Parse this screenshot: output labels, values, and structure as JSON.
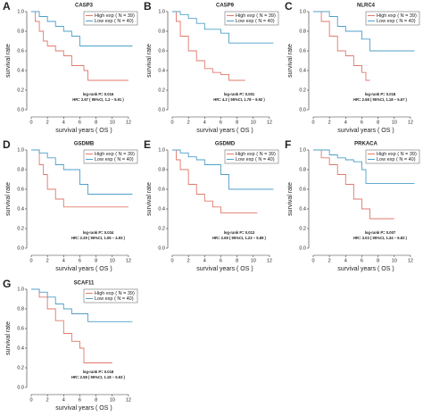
{
  "chart_data": [
    {
      "type": "line",
      "step": true,
      "label": "A",
      "title": "CASP3",
      "ylabel": "survival rate",
      "xlabel": "survival years ( OS )",
      "xlim": [
        0,
        13
      ],
      "xticks": [
        0,
        2,
        4,
        6,
        8,
        10,
        12
      ],
      "ylim": [
        0,
        1
      ],
      "yticks": [
        {
          "value": 0,
          "label": "0.0"
        },
        0.2,
        0.4,
        0.6,
        0.8,
        {
          "value": 1,
          "label": "1.0"
        }
      ],
      "legend": "upper right",
      "annotations": [
        "log-rank P= 0.016",
        "HR= 2.67 ( 95%CI, 1.2 – 5.91 )"
      ],
      "series": [
        {
          "name": "High exp ( N = 39)",
          "color": "#e07a6b",
          "x": [
            0,
            0.5,
            1,
            1.5,
            2,
            3,
            4,
            5,
            6.5,
            7,
            12
          ],
          "values": [
            1,
            0.9,
            0.8,
            0.7,
            0.65,
            0.6,
            0.55,
            0.45,
            0.4,
            0.3,
            0.3
          ]
        },
        {
          "name": "Low exp ( N = 40)",
          "color": "#4f9fca",
          "x": [
            0,
            1,
            2,
            3,
            4,
            5,
            6,
            12.5
          ],
          "values": [
            1,
            0.95,
            0.9,
            0.85,
            0.8,
            0.75,
            0.65,
            0.65
          ]
        }
      ]
    },
    {
      "type": "line",
      "step": true,
      "label": "B",
      "title": "CASP9",
      "ylabel": "survival rate",
      "xlabel": "survival years ( OS )",
      "xlim": [
        0,
        13
      ],
      "xticks": [
        0,
        2,
        4,
        6,
        8,
        10,
        12
      ],
      "ylim": [
        0,
        1
      ],
      "yticks": [
        {
          "value": 0,
          "label": "0.0"
        },
        0.2,
        0.4,
        0.6,
        0.8,
        {
          "value": 1,
          "label": "1.0"
        }
      ],
      "legend": "upper right",
      "annotations": [
        "log-rank P= 0.001",
        "HR= 4.2 ( 95%CI, 1.78 – 9.92 )"
      ],
      "series": [
        {
          "name": "High exp ( N = 39)",
          "color": "#e07a6b",
          "x": [
            0,
            0.5,
            1,
            2,
            3,
            4,
            5,
            6,
            7,
            9
          ],
          "values": [
            1,
            0.9,
            0.75,
            0.6,
            0.5,
            0.42,
            0.38,
            0.36,
            0.3,
            0.3
          ]
        },
        {
          "name": "Low exp ( N = 40)",
          "color": "#4f9fca",
          "x": [
            0,
            1,
            2,
            3,
            4,
            6,
            7,
            12.5
          ],
          "values": [
            1,
            0.97,
            0.93,
            0.88,
            0.82,
            0.78,
            0.68,
            0.68
          ]
        }
      ]
    },
    {
      "type": "line",
      "step": true,
      "label": "C",
      "title": "NLRC4",
      "ylabel": "survival rate",
      "xlabel": "survival years ( OS )",
      "xlim": [
        0,
        13
      ],
      "xticks": [
        0,
        2,
        4,
        6,
        8,
        10,
        12
      ],
      "ylim": [
        0,
        1
      ],
      "yticks": [
        {
          "value": 0,
          "label": "0.0"
        },
        0.2,
        0.4,
        0.6,
        0.8,
        {
          "value": 1,
          "label": "1.0"
        }
      ],
      "legend": "upper right",
      "annotations": [
        "log-rank P= 0.018",
        "HR= 2.58 ( 95%CI, 1.18 – 5.67 )"
      ],
      "series": [
        {
          "name": "High exp ( N = 39)",
          "color": "#e07a6b",
          "x": [
            0,
            1,
            2,
            3,
            4,
            5,
            6,
            6.5,
            7
          ],
          "values": [
            1,
            0.9,
            0.75,
            0.6,
            0.55,
            0.45,
            0.38,
            0.3,
            0.3
          ]
        },
        {
          "name": "Low exp ( N = 40)",
          "color": "#4f9fca",
          "x": [
            0,
            2,
            3,
            4,
            6,
            7,
            12.5
          ],
          "values": [
            1,
            0.95,
            0.85,
            0.8,
            0.72,
            0.6,
            0.6
          ]
        }
      ]
    },
    {
      "type": "line",
      "step": true,
      "label": "D",
      "title": "GSDMB",
      "ylabel": "survival rate",
      "xlabel": "survival years ( OS )",
      "xlim": [
        0,
        13
      ],
      "xticks": [
        0,
        2,
        4,
        6,
        8,
        10,
        12
      ],
      "ylim": [
        0,
        1
      ],
      "yticks": [
        {
          "value": 0,
          "label": "0.0"
        },
        0.2,
        0.4,
        0.6,
        0.8,
        {
          "value": 1,
          "label": "1.0"
        }
      ],
      "legend": "upper right",
      "annotations": [
        "log-rank P= 0.034",
        "HR= 2.29 ( 95%CI, 1.06 – 4.93 )"
      ],
      "series": [
        {
          "name": "High exp ( N = 39)",
          "color": "#e07a6b",
          "x": [
            0,
            1,
            1.5,
            2,
            3,
            4,
            12
          ],
          "values": [
            1,
            0.85,
            0.75,
            0.6,
            0.5,
            0.42,
            0.42
          ]
        },
        {
          "name": "Low exp ( N = 40)",
          "color": "#4f9fca",
          "x": [
            0,
            1,
            2,
            3,
            4,
            6,
            7,
            12.5
          ],
          "values": [
            1,
            0.97,
            0.92,
            0.85,
            0.8,
            0.65,
            0.55,
            0.55
          ]
        }
      ]
    },
    {
      "type": "line",
      "step": true,
      "label": "E",
      "title": "GSDMD",
      "ylabel": "survival rate",
      "xlabel": "survival years ( OS )",
      "xlim": [
        0,
        13
      ],
      "xticks": [
        0,
        2,
        4,
        6,
        8,
        10,
        12
      ],
      "ylim": [
        0,
        1
      ],
      "yticks": [
        {
          "value": 0,
          "label": "0.0"
        },
        0.2,
        0.4,
        0.6,
        0.8,
        {
          "value": 1,
          "label": "1.0"
        }
      ],
      "legend": "upper right",
      "annotations": [
        "log-rank P= 0.013",
        "HR= 2.69 ( 95%CI, 1.23 – 5.89 )"
      ],
      "series": [
        {
          "name": "High exp ( N = 39)",
          "color": "#e07a6b",
          "x": [
            0,
            0.5,
            1,
            2,
            3,
            4,
            5,
            6,
            10.5
          ],
          "values": [
            1,
            0.9,
            0.8,
            0.65,
            0.55,
            0.48,
            0.42,
            0.36,
            0.36
          ]
        },
        {
          "name": "Low exp ( N = 40)",
          "color": "#4f9fca",
          "x": [
            0,
            1,
            2,
            3,
            4,
            6,
            7,
            12.5
          ],
          "values": [
            1,
            0.97,
            0.93,
            0.9,
            0.85,
            0.75,
            0.6,
            0.6
          ]
        }
      ]
    },
    {
      "type": "line",
      "step": true,
      "label": "F",
      "title": "PRKACA",
      "ylabel": "survival rate",
      "xlabel": "survival years ( OS )",
      "xlim": [
        0,
        13
      ],
      "xticks": [
        0,
        2,
        4,
        6,
        8,
        10,
        12
      ],
      "ylim": [
        0,
        1
      ],
      "yticks": [
        {
          "value": 0,
          "label": "0.0"
        },
        0.2,
        0.4,
        0.6,
        0.8,
        {
          "value": 1,
          "label": "1.0"
        }
      ],
      "legend": "upper right",
      "annotations": [
        "log-rank P= 0.007",
        "HR= 3.03 ( 95%CI, 1.34 – 6.83 )"
      ],
      "series": [
        {
          "name": "High exp ( N = 39)",
          "color": "#e07a6b",
          "x": [
            0,
            1,
            2,
            3,
            4,
            5,
            6,
            7,
            10
          ],
          "values": [
            1,
            0.92,
            0.85,
            0.75,
            0.65,
            0.5,
            0.4,
            0.3,
            0.3
          ]
        },
        {
          "name": "Low exp ( N = 40)",
          "color": "#4f9fca",
          "x": [
            0,
            2,
            3,
            4,
            5,
            6,
            6.5,
            12.5
          ],
          "values": [
            1,
            0.95,
            0.92,
            0.9,
            0.88,
            0.8,
            0.66,
            0.66
          ]
        }
      ]
    },
    {
      "type": "line",
      "step": true,
      "label": "G",
      "title": "SCAF11",
      "ylabel": "survival rate",
      "xlabel": "survival years ( OS )",
      "xlim": [
        0,
        13
      ],
      "xticks": [
        0,
        2,
        4,
        6,
        8,
        10,
        12
      ],
      "ylim": [
        0,
        1
      ],
      "yticks": [
        {
          "value": 0,
          "label": "0.0"
        },
        0.2,
        0.4,
        0.6,
        0.8,
        {
          "value": 1,
          "label": "1.0"
        }
      ],
      "legend": "upper right",
      "annotations": [
        "log-rank P= 0.018",
        "HR= 2.58 ( 95%CI, 1.18 – 5.63 )"
      ],
      "series": [
        {
          "name": "High exp ( N = 39)",
          "color": "#e07a6b",
          "x": [
            0,
            1,
            2,
            3,
            4,
            5,
            6,
            6.5,
            10
          ],
          "values": [
            1,
            0.92,
            0.8,
            0.68,
            0.55,
            0.47,
            0.4,
            0.25,
            0.25
          ]
        },
        {
          "name": "Low exp ( N = 40)",
          "color": "#4f9fca",
          "x": [
            0,
            1,
            2,
            3,
            4,
            5,
            7,
            12.5
          ],
          "values": [
            1,
            0.97,
            0.92,
            0.85,
            0.8,
            0.75,
            0.67,
            0.67
          ]
        }
      ]
    }
  ]
}
